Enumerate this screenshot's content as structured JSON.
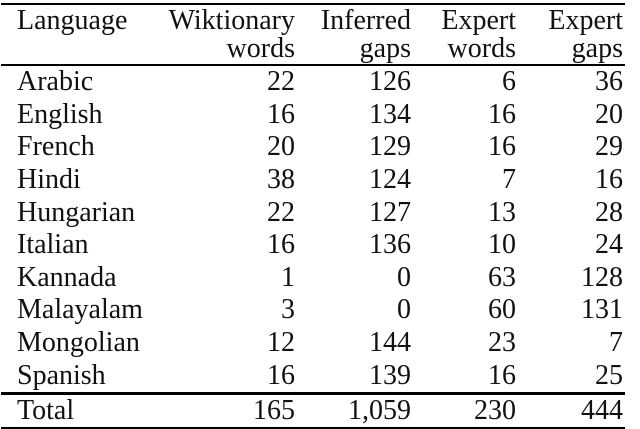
{
  "page": {
    "background": "#ffffff",
    "text_color": "#111111",
    "rule_color": "#000000"
  },
  "table": {
    "columns": [
      {
        "label": "Language",
        "sublabel": ""
      },
      {
        "label": "Wiktionary",
        "sublabel": "words"
      },
      {
        "label": "Inferred",
        "sublabel": "gaps"
      },
      {
        "label": "Expert",
        "sublabel": "words"
      },
      {
        "label": "Expert",
        "sublabel": "gaps"
      }
    ],
    "rows": [
      {
        "language": "Arabic",
        "values": [
          "22",
          "126",
          "6",
          "36"
        ]
      },
      {
        "language": "English",
        "values": [
          "16",
          "134",
          "16",
          "20"
        ]
      },
      {
        "language": "French",
        "values": [
          "20",
          "129",
          "16",
          "29"
        ]
      },
      {
        "language": "Hindi",
        "values": [
          "38",
          "124",
          "7",
          "16"
        ]
      },
      {
        "language": "Hungarian",
        "values": [
          "22",
          "127",
          "13",
          "28"
        ]
      },
      {
        "language": "Italian",
        "values": [
          "16",
          "136",
          "10",
          "24"
        ]
      },
      {
        "language": "Kannada",
        "values": [
          "1",
          "0",
          "63",
          "128"
        ]
      },
      {
        "language": "Malayalam",
        "values": [
          "3",
          "0",
          "60",
          "131"
        ]
      },
      {
        "language": "Mongolian",
        "values": [
          "12",
          "144",
          "23",
          "7"
        ]
      },
      {
        "language": "Spanish",
        "values": [
          "16",
          "139",
          "16",
          "25"
        ]
      }
    ],
    "total": {
      "label": "Total",
      "values": [
        "165",
        "1,059",
        "230",
        "444"
      ]
    }
  }
}
